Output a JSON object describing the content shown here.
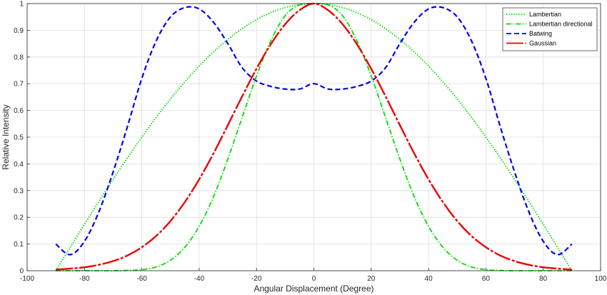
{
  "chart_data": {
    "type": "line",
    "title": "",
    "xlabel": "Angular Displacement (Degree)",
    "ylabel": "Relative Intensity",
    "xlim": [
      -100,
      100
    ],
    "ylim": [
      0,
      1
    ],
    "xticks": [
      -100,
      -80,
      -60,
      -40,
      -20,
      0,
      20,
      40,
      60,
      80,
      100
    ],
    "yticks": [
      0,
      0.1,
      0.2,
      0.3,
      0.4,
      0.5,
      0.6,
      0.7,
      0.8,
      0.9,
      1
    ],
    "xtick_labels": [
      "-100",
      "-80",
      "-60",
      "-40",
      "-20",
      "0",
      "20",
      "40",
      "60",
      "80",
      "100"
    ],
    "ytick_labels": [
      "0",
      "0.1",
      "0.2",
      "0.3",
      "0.4",
      "0.5",
      "0.6",
      "0.7",
      "0.8",
      "0.9",
      "1"
    ],
    "grid": true,
    "legend_position": "top-right",
    "x": [
      -90,
      -85,
      -80,
      -75,
      -70,
      -65,
      -60,
      -55,
      -50,
      -45,
      -40,
      -35,
      -30,
      -25,
      -20,
      -15,
      -10,
      -5,
      0,
      5,
      10,
      15,
      20,
      25,
      30,
      35,
      40,
      45,
      50,
      55,
      60,
      65,
      70,
      75,
      80,
      85,
      90
    ],
    "series": [
      {
        "name": "Lambertian",
        "color": "#00dd00",
        "dash": "dotted",
        "values": [
          0,
          0.087,
          0.174,
          0.259,
          0.342,
          0.423,
          0.5,
          0.574,
          0.643,
          0.707,
          0.766,
          0.819,
          0.866,
          0.906,
          0.94,
          0.966,
          0.985,
          0.996,
          1,
          0.996,
          0.985,
          0.966,
          0.94,
          0.906,
          0.866,
          0.819,
          0.766,
          0.707,
          0.643,
          0.574,
          0.5,
          0.423,
          0.342,
          0.259,
          0.174,
          0.087,
          0
        ]
      },
      {
        "name": "Lambertian directional",
        "color": "#00dd00",
        "dash": "dashdot",
        "values": [
          0,
          0,
          0,
          0,
          0,
          0.001,
          0.004,
          0.014,
          0.039,
          0.088,
          0.166,
          0.277,
          0.418,
          0.574,
          0.729,
          0.861,
          0.955,
          0.995,
          1,
          0.995,
          0.955,
          0.861,
          0.729,
          0.574,
          0.418,
          0.277,
          0.166,
          0.088,
          0.039,
          0.014,
          0.004,
          0.001,
          0,
          0,
          0,
          0,
          0
        ]
      },
      {
        "name": "Batwing",
        "color": "#0000ee",
        "dash": "dashed",
        "values": [
          0.1,
          0.06,
          0.11,
          0.22,
          0.37,
          0.54,
          0.72,
          0.86,
          0.95,
          0.985,
          0.98,
          0.93,
          0.85,
          0.76,
          0.71,
          0.69,
          0.68,
          0.68,
          0.7,
          0.68,
          0.68,
          0.69,
          0.71,
          0.76,
          0.85,
          0.93,
          0.98,
          0.985,
          0.95,
          0.86,
          0.72,
          0.54,
          0.37,
          0.22,
          0.11,
          0.06,
          0.1
        ]
      },
      {
        "name": "Gaussian",
        "color": "#ee0000",
        "dash": "longdash",
        "values": [
          0.004,
          0.008,
          0.013,
          0.022,
          0.036,
          0.057,
          0.088,
          0.13,
          0.186,
          0.257,
          0.342,
          0.439,
          0.545,
          0.653,
          0.756,
          0.848,
          0.923,
          0.975,
          1,
          0.975,
          0.923,
          0.848,
          0.756,
          0.653,
          0.545,
          0.439,
          0.342,
          0.257,
          0.186,
          0.13,
          0.088,
          0.057,
          0.036,
          0.022,
          0.013,
          0.008,
          0.004
        ]
      }
    ]
  }
}
